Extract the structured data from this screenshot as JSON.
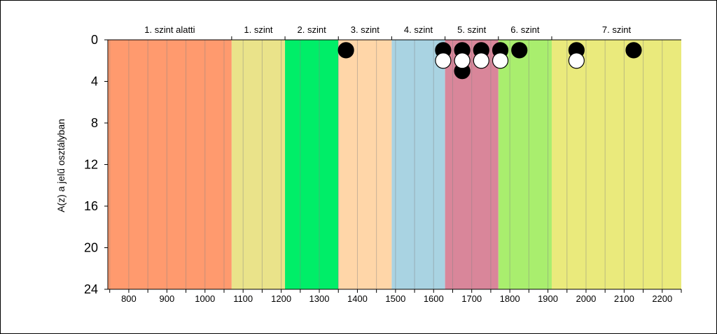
{
  "chart_data": {
    "type": "scatter",
    "ylabel": "A(z) a jelű osztályban",
    "xlim": [
      745,
      2250
    ],
    "ylim": [
      0,
      24
    ],
    "y_reversed": true,
    "x_ticks": [
      800,
      900,
      1000,
      1100,
      1200,
      1300,
      1400,
      1500,
      1600,
      1700,
      1800,
      1900,
      2000,
      2100,
      2200
    ],
    "y_ticks": [
      0,
      4,
      8,
      12,
      16,
      20,
      24
    ],
    "grid": "vertical",
    "bands": [
      {
        "label": "1. szint alatti",
        "from": 745,
        "to": 1070,
        "color": "#FF9A6E"
      },
      {
        "label": "1. szint",
        "from": 1070,
        "to": 1210,
        "color": "#EAE38A"
      },
      {
        "label": "2. szint",
        "from": 1210,
        "to": 1350,
        "color": "#00EE68"
      },
      {
        "label": "3. szint",
        "from": 1350,
        "to": 1490,
        "color": "#FFD6A8"
      },
      {
        "label": "4. szint",
        "from": 1490,
        "to": 1630,
        "color": "#A9D3E2"
      },
      {
        "label": "5. szint",
        "from": 1630,
        "to": 1770,
        "color": "#D9869A"
      },
      {
        "label": "6. szint",
        "from": 1770,
        "to": 1910,
        "color": "#A9EE6E"
      },
      {
        "label": "7. szint",
        "from": 1910,
        "to": 2250,
        "color": "#EAEA7C"
      }
    ],
    "series": [
      {
        "marker": "filled-black",
        "points": [
          {
            "x": 1370,
            "y": 1
          },
          {
            "x": 1625,
            "y": 1
          },
          {
            "x": 1675,
            "y": 1
          },
          {
            "x": 1675,
            "y": 3
          },
          {
            "x": 1725,
            "y": 1
          },
          {
            "x": 1775,
            "y": 1
          },
          {
            "x": 1825,
            "y": 1
          },
          {
            "x": 1975,
            "y": 1
          },
          {
            "x": 2125,
            "y": 1
          }
        ]
      },
      {
        "marker": "open-white",
        "points": [
          {
            "x": 1625,
            "y": 2
          },
          {
            "x": 1675,
            "y": 2
          },
          {
            "x": 1725,
            "y": 2
          },
          {
            "x": 1775,
            "y": 2
          },
          {
            "x": 1975,
            "y": 2
          }
        ]
      }
    ]
  }
}
